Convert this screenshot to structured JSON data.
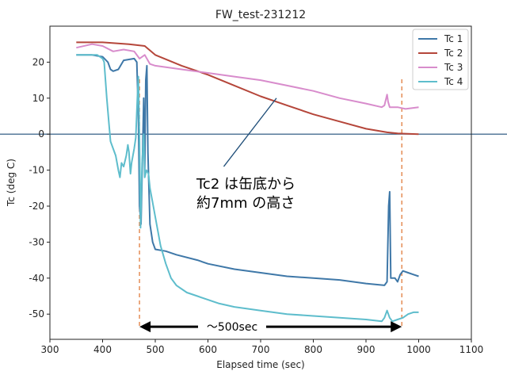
{
  "chart_data": {
    "type": "line",
    "title": "FW_test-231212",
    "xlabel": "Elapsed time (sec)",
    "ylabel": "Tc  (deg C)",
    "xlim": [
      300,
      1100
    ],
    "ylim": [
      -57,
      30
    ],
    "xticks": [
      300,
      400,
      500,
      600,
      700,
      800,
      900,
      1000,
      1100
    ],
    "yticks": [
      -50,
      -40,
      -30,
      -20,
      -10,
      0,
      10,
      20
    ],
    "grid": false,
    "legend": "top-right",
    "series": [
      {
        "name": "Tc 1",
        "color": "#3f78a8",
        "points": [
          [
            350,
            22
          ],
          [
            380,
            22
          ],
          [
            400,
            21.5
          ],
          [
            410,
            20
          ],
          [
            415,
            18
          ],
          [
            420,
            17.5
          ],
          [
            430,
            18
          ],
          [
            440,
            20.5
          ],
          [
            460,
            21
          ],
          [
            465,
            20
          ],
          [
            468,
            5
          ],
          [
            470,
            -20
          ],
          [
            473,
            -25
          ],
          [
            476,
            -5
          ],
          [
            478,
            10
          ],
          [
            480,
            -10
          ],
          [
            482,
            15
          ],
          [
            484,
            19
          ],
          [
            486,
            -5
          ],
          [
            490,
            -25
          ],
          [
            495,
            -30
          ],
          [
            500,
            -32
          ],
          [
            520,
            -32.5
          ],
          [
            540,
            -33.5
          ],
          [
            580,
            -35
          ],
          [
            600,
            -36
          ],
          [
            650,
            -37.5
          ],
          [
            700,
            -38.5
          ],
          [
            750,
            -39.5
          ],
          [
            800,
            -40
          ],
          [
            850,
            -40.5
          ],
          [
            900,
            -41.5
          ],
          [
            935,
            -42
          ],
          [
            940,
            -41
          ],
          [
            943,
            -20
          ],
          [
            945,
            -16
          ],
          [
            947,
            -40
          ],
          [
            955,
            -40
          ],
          [
            960,
            -41
          ],
          [
            965,
            -39
          ],
          [
            970,
            -38
          ],
          [
            980,
            -38.5
          ],
          [
            990,
            -39
          ],
          [
            1000,
            -39.5
          ]
        ]
      },
      {
        "name": "Tc 2",
        "color": "#b5463a",
        "points": [
          [
            350,
            25.5
          ],
          [
            400,
            25.5
          ],
          [
            450,
            25
          ],
          [
            480,
            24.5
          ],
          [
            500,
            22
          ],
          [
            550,
            19
          ],
          [
            600,
            16.5
          ],
          [
            650,
            13.5
          ],
          [
            700,
            10.5
          ],
          [
            750,
            8
          ],
          [
            800,
            5.5
          ],
          [
            850,
            3.5
          ],
          [
            900,
            1.5
          ],
          [
            940,
            0.5
          ],
          [
            960,
            0.2
          ],
          [
            1000,
            0
          ]
        ]
      },
      {
        "name": "Tc 3",
        "color": "#d88ccc",
        "points": [
          [
            350,
            24
          ],
          [
            380,
            25
          ],
          [
            400,
            24.5
          ],
          [
            420,
            23
          ],
          [
            440,
            23.5
          ],
          [
            460,
            23
          ],
          [
            470,
            21
          ],
          [
            480,
            22
          ],
          [
            490,
            19.5
          ],
          [
            500,
            19
          ],
          [
            550,
            18
          ],
          [
            600,
            17
          ],
          [
            650,
            16
          ],
          [
            700,
            15
          ],
          [
            750,
            13.5
          ],
          [
            800,
            12
          ],
          [
            850,
            10
          ],
          [
            900,
            8.5
          ],
          [
            930,
            7.5
          ],
          [
            935,
            8
          ],
          [
            940,
            11
          ],
          [
            942,
            9
          ],
          [
            945,
            7.5
          ],
          [
            960,
            7.5
          ],
          [
            975,
            7
          ],
          [
            1000,
            7.5
          ]
        ]
      },
      {
        "name": "Tc 4",
        "color": "#5ebdcc",
        "points": [
          [
            350,
            22
          ],
          [
            390,
            22
          ],
          [
            400,
            21
          ],
          [
            403,
            20
          ],
          [
            408,
            10
          ],
          [
            412,
            3
          ],
          [
            415,
            -2
          ],
          [
            420,
            -4
          ],
          [
            425,
            -6
          ],
          [
            430,
            -10
          ],
          [
            433,
            -12
          ],
          [
            436,
            -8
          ],
          [
            440,
            -9
          ],
          [
            445,
            -6
          ],
          [
            448,
            -3
          ],
          [
            450,
            -5
          ],
          [
            453,
            -11
          ],
          [
            455,
            -8
          ],
          [
            460,
            -4
          ],
          [
            463,
            -1
          ],
          [
            466,
            10
          ],
          [
            468,
            16
          ],
          [
            470,
            -2
          ],
          [
            472,
            -26
          ],
          [
            475,
            -8
          ],
          [
            478,
            0
          ],
          [
            480,
            -12
          ],
          [
            483,
            -10
          ],
          [
            487,
            -11
          ],
          [
            490,
            -15
          ],
          [
            495,
            -19
          ],
          [
            500,
            -23
          ],
          [
            510,
            -31
          ],
          [
            520,
            -36
          ],
          [
            530,
            -40
          ],
          [
            540,
            -42
          ],
          [
            560,
            -44
          ],
          [
            580,
            -45
          ],
          [
            600,
            -46
          ],
          [
            620,
            -47
          ],
          [
            650,
            -48
          ],
          [
            700,
            -49
          ],
          [
            750,
            -50
          ],
          [
            800,
            -50.5
          ],
          [
            850,
            -51
          ],
          [
            900,
            -51.5
          ],
          [
            930,
            -52
          ],
          [
            935,
            -51
          ],
          [
            940,
            -49
          ],
          [
            945,
            -51
          ],
          [
            950,
            -52
          ],
          [
            960,
            -51.5
          ],
          [
            970,
            -51
          ],
          [
            980,
            -50
          ],
          [
            990,
            -49.5
          ],
          [
            1000,
            -49.5
          ]
        ]
      }
    ],
    "zero_line": {
      "y": 0,
      "color": "#1f4e79"
    },
    "reference_lines": [
      {
        "x": 470,
        "color": "#e07b3c"
      },
      {
        "x": 968,
        "color": "#e07b3c"
      }
    ],
    "annotations": [
      {
        "line1": "Tc2 は缶底から",
        "line2": "約7mm の高さ",
        "arrow_from": [
          630,
          -9
        ],
        "arrow_to": [
          730,
          10
        ]
      },
      {
        "text": "～500sec",
        "span": [
          470,
          968
        ],
        "y": -53.5
      }
    ]
  }
}
